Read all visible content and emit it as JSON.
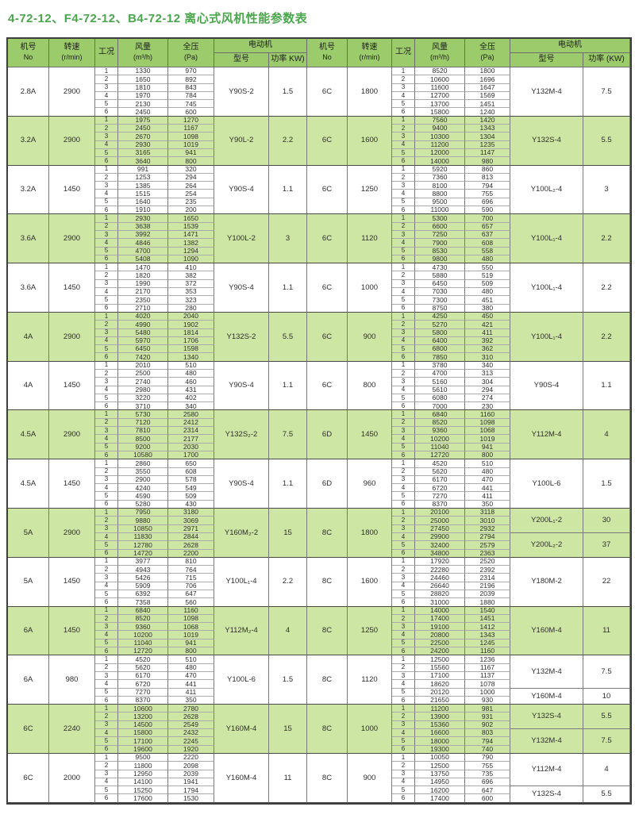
{
  "title": "4-72-12、F4-72-12、B4-72-12 离心式风机性能参数表",
  "colors": {
    "title_green": "#4aa64c",
    "header_bg": "#9bcb6a",
    "band_green": "#cee6a3",
    "border_dark": "#3e3e3e"
  },
  "header": {
    "left": {
      "no_cn": "机号",
      "no_en": "No",
      "rpm_cn": "转速",
      "rpm_en": "(r/min)",
      "cond": "工况",
      "flow_cn": "风量",
      "flow_en": "(m³/h)",
      "pressure_cn": "全压",
      "pressure_en": "(Pa)",
      "motor": "电动机",
      "model": "型号",
      "power": "功率 KW)"
    },
    "right": {
      "no_cn": "机号",
      "no_en": "No",
      "rpm_cn": "转速",
      "rpm_en": "(r/min)",
      "cond": "工况",
      "flow_cn": "风量",
      "flow_en": "(m³/h)",
      "pressure_cn": "全压",
      "pressure_en": "(Pa)",
      "motor": "电动机",
      "model": "型号",
      "power": "功率 (KW)"
    }
  },
  "chart_data": {
    "type": "table",
    "title": "4-72-12、F4-72-12、B4-72-12 离心式风机性能参数表",
    "columns": [
      "机号 No",
      "转速 (r/min)",
      "工况",
      "风量 (m³/h)",
      "全压 (Pa)",
      "电动机 型号",
      "电动机 功率 KW"
    ],
    "conditions": [
      1,
      2,
      3,
      4,
      5,
      6
    ],
    "groups_left": [
      {
        "no": "2.8A",
        "rpm": "2900",
        "shaded": false,
        "flow": [
          1330,
          1650,
          1810,
          1970,
          2130,
          2450
        ],
        "pressure": [
          970,
          892,
          843,
          784,
          745,
          600
        ],
        "motors": [
          {
            "model": "Y90S-2",
            "power": "1.5",
            "rows": 6
          }
        ]
      },
      {
        "no": "3.2A",
        "rpm": "2900",
        "shaded": true,
        "flow": [
          1975,
          2450,
          2670,
          2930,
          3165,
          3640
        ],
        "pressure": [
          1270,
          1167,
          1098,
          1019,
          941,
          800
        ],
        "motors": [
          {
            "model": "Y90L-2",
            "power": "2.2",
            "rows": 6
          }
        ]
      },
      {
        "no": "3.2A",
        "rpm": "1450",
        "shaded": false,
        "flow": [
          991,
          1253,
          1385,
          1515,
          1640,
          1910
        ],
        "pressure": [
          320,
          294,
          264,
          254,
          235,
          200
        ],
        "motors": [
          {
            "model": "Y90S-4",
            "power": "1.1",
            "rows": 6
          }
        ]
      },
      {
        "no": "3.6A",
        "rpm": "2900",
        "shaded": true,
        "flow": [
          2930,
          3638,
          3992,
          4846,
          4700,
          5408
        ],
        "pressure": [
          1650,
          1539,
          1471,
          1382,
          1294,
          1090
        ],
        "motors": [
          {
            "model": "Y100L-2",
            "power": "3",
            "rows": 6
          }
        ]
      },
      {
        "no": "3.6A",
        "rpm": "1450",
        "shaded": false,
        "flow": [
          1470,
          1820,
          1990,
          2170,
          2350,
          2710
        ],
        "pressure": [
          410,
          382,
          372,
          353,
          323,
          280
        ],
        "motors": [
          {
            "model": "Y90S-4",
            "power": "1.1",
            "rows": 6
          }
        ]
      },
      {
        "no": "4A",
        "rpm": "2900",
        "shaded": true,
        "flow": [
          4020,
          4990,
          5480,
          5970,
          6450,
          7420
        ],
        "pressure": [
          2040,
          1902,
          1814,
          1706,
          1598,
          1340
        ],
        "motors": [
          {
            "model": "Y132S-2",
            "power": "5.5",
            "rows": 6
          }
        ]
      },
      {
        "no": "4A",
        "rpm": "1450",
        "shaded": false,
        "flow": [
          2010,
          2500,
          2740,
          2980,
          3220,
          3710
        ],
        "pressure": [
          510,
          480,
          460,
          431,
          402,
          340
        ],
        "motors": [
          {
            "model": "Y90S-4",
            "power": "1.1",
            "rows": 6
          }
        ]
      },
      {
        "no": "4.5A",
        "rpm": "2900",
        "shaded": true,
        "flow": [
          5730,
          7120,
          7810,
          8500,
          9200,
          10580
        ],
        "pressure": [
          2580,
          2412,
          2314,
          2177,
          2030,
          1700
        ],
        "motors": [
          {
            "model": "Y132S₂-2",
            "power": "7.5",
            "rows": 6
          }
        ]
      },
      {
        "no": "4.5A",
        "rpm": "1450",
        "shaded": false,
        "flow": [
          2860,
          3550,
          2900,
          4240,
          4590,
          5280
        ],
        "pressure": [
          650,
          608,
          578,
          549,
          509,
          430
        ],
        "motors": [
          {
            "model": "Y90S-4",
            "power": "1.1",
            "rows": 6
          }
        ]
      },
      {
        "no": "5A",
        "rpm": "2900",
        "shaded": true,
        "flow": [
          7950,
          9880,
          10850,
          11830,
          12780,
          14720
        ],
        "pressure": [
          3180,
          3069,
          2971,
          2844,
          2628,
          2200
        ],
        "motors": [
          {
            "model": "Y160M₂-2",
            "power": "15",
            "rows": 6
          }
        ]
      },
      {
        "no": "5A",
        "rpm": "1450",
        "shaded": false,
        "flow": [
          3977,
          4943,
          5426,
          5909,
          6392,
          7358
        ],
        "pressure": [
          810,
          764,
          715,
          706,
          647,
          560
        ],
        "motors": [
          {
            "model": "Y100L₁-4",
            "power": "2.2",
            "rows": 6
          }
        ]
      },
      {
        "no": "6A",
        "rpm": "1450",
        "shaded": true,
        "flow": [
          6840,
          8520,
          9360,
          10200,
          11040,
          12720
        ],
        "pressure": [
          1160,
          1098,
          1068,
          1019,
          941,
          800
        ],
        "motors": [
          {
            "model": "Y112M₂-4",
            "power": "4",
            "rows": 6
          }
        ]
      },
      {
        "no": "6A",
        "rpm": "980",
        "shaded": false,
        "flow": [
          4520,
          5620,
          6170,
          6720,
          7270,
          8370
        ],
        "pressure": [
          510,
          480,
          470,
          441,
          411,
          350
        ],
        "motors": [
          {
            "model": "Y100L-6",
            "power": "1.5",
            "rows": 6
          }
        ]
      },
      {
        "no": "6C",
        "rpm": "2240",
        "shaded": true,
        "flow": [
          10600,
          13200,
          14500,
          15800,
          17100,
          19600
        ],
        "pressure": [
          2780,
          2628,
          2549,
          2432,
          2245,
          1920
        ],
        "motors": [
          {
            "model": "Y160M-4",
            "power": "15",
            "rows": 6
          }
        ]
      },
      {
        "no": "6C",
        "rpm": "2000",
        "shaded": false,
        "flow": [
          9500,
          11800,
          12950,
          14100,
          15250,
          17600
        ],
        "pressure": [
          2220,
          2098,
          2039,
          1941,
          1794,
          1530
        ],
        "motors": [
          {
            "model": "Y160M-4",
            "power": "11",
            "rows": 6
          }
        ]
      }
    ],
    "groups_right": [
      {
        "no": "6C",
        "rpm": "1800",
        "shaded": false,
        "flow": [
          8520,
          10600,
          11600,
          12700,
          13700,
          15800
        ],
        "pressure": [
          1800,
          1696,
          1647,
          1569,
          1451,
          1240
        ],
        "motors": [
          {
            "model": "Y132M-4",
            "power": "7.5",
            "rows": 6
          }
        ]
      },
      {
        "no": "6C",
        "rpm": "1600",
        "shaded": true,
        "flow": [
          7560,
          9400,
          10300,
          11200,
          12000,
          14000
        ],
        "pressure": [
          1420,
          1343,
          1304,
          1235,
          1147,
          980
        ],
        "motors": [
          {
            "model": "Y132S-4",
            "power": "5.5",
            "rows": 6
          }
        ]
      },
      {
        "no": "6C",
        "rpm": "1250",
        "shaded": false,
        "flow": [
          5920,
          7360,
          8100,
          8800,
          9500,
          11000
        ],
        "pressure": [
          860,
          813,
          794,
          755,
          696,
          590
        ],
        "motors": [
          {
            "model": "Y100L₂-4",
            "power": "3",
            "rows": 6
          }
        ]
      },
      {
        "no": "6C",
        "rpm": "1120",
        "shaded": true,
        "flow": [
          5300,
          6600,
          7250,
          7900,
          8530,
          9800
        ],
        "pressure": [
          700,
          657,
          637,
          608,
          558,
          480
        ],
        "motors": [
          {
            "model": "Y100L₁-4",
            "power": "2.2",
            "rows": 6
          }
        ]
      },
      {
        "no": "6C",
        "rpm": "1000",
        "shaded": false,
        "flow": [
          4730,
          5880,
          6450,
          7030,
          7300,
          8750
        ],
        "pressure": [
          550,
          519,
          509,
          480,
          451,
          380
        ],
        "motors": [
          {
            "model": "Y100L₁-4",
            "power": "2.2",
            "rows": 6
          }
        ]
      },
      {
        "no": "6C",
        "rpm": "900",
        "shaded": true,
        "flow": [
          4250,
          5270,
          5800,
          6400,
          6800,
          7850
        ],
        "pressure": [
          450,
          421,
          411,
          392,
          362,
          310
        ],
        "motors": [
          {
            "model": "Y100L₁-4",
            "power": "2.2",
            "rows": 6
          }
        ]
      },
      {
        "no": "6C",
        "rpm": "800",
        "shaded": false,
        "flow": [
          3780,
          4700,
          5160,
          5610,
          6080,
          7000
        ],
        "pressure": [
          340,
          313,
          304,
          294,
          274,
          230
        ],
        "motors": [
          {
            "model": "Y90S-4",
            "power": "1.1",
            "rows": 6
          }
        ]
      },
      {
        "no": "6D",
        "rpm": "1450",
        "shaded": true,
        "flow": [
          6840,
          8520,
          9360,
          10200,
          11040,
          12720
        ],
        "pressure": [
          1160,
          1098,
          1068,
          1019,
          941,
          800
        ],
        "motors": [
          {
            "model": "Y112M-4",
            "power": "4",
            "rows": 6
          }
        ]
      },
      {
        "no": "6D",
        "rpm": "960",
        "shaded": false,
        "flow": [
          4520,
          5620,
          6170,
          6720,
          7270,
          8370
        ],
        "pressure": [
          510,
          480,
          470,
          441,
          411,
          350
        ],
        "motors": [
          {
            "model": "Y100L-6",
            "power": "1.5",
            "rows": 6
          }
        ]
      },
      {
        "no": "8C",
        "rpm": "1800",
        "shaded": true,
        "flow": [
          20100,
          25000,
          27450,
          29900,
          32400,
          34800
        ],
        "pressure": [
          3118,
          3010,
          2932,
          2794,
          2579,
          2363
        ],
        "motors": [
          {
            "model": "Y200L₁-2",
            "power": "30",
            "rows": 3
          },
          {
            "model": "Y200L₂-2",
            "power": "37",
            "rows": 3
          }
        ]
      },
      {
        "no": "8C",
        "rpm": "1600",
        "shaded": false,
        "flow": [
          17920,
          22280,
          24460,
          26640,
          28820,
          31000
        ],
        "pressure": [
          2520,
          2392,
          2314,
          2196,
          2039,
          1880
        ],
        "motors": [
          {
            "model": "Y180M-2",
            "power": "22",
            "rows": 6
          }
        ]
      },
      {
        "no": "8C",
        "rpm": "1250",
        "shaded": true,
        "flow": [
          14000,
          17400,
          19100,
          20800,
          22500,
          24200
        ],
        "pressure": [
          1540,
          1451,
          1412,
          1343,
          1245,
          1160
        ],
        "motors": [
          {
            "model": "Y160M-4",
            "power": "11",
            "rows": 6
          }
        ]
      },
      {
        "no": "8C",
        "rpm": "1120",
        "shaded": false,
        "flow": [
          12500,
          15560,
          17100,
          18620,
          20120,
          21650
        ],
        "pressure": [
          1236,
          1167,
          1137,
          1078,
          1000,
          930
        ],
        "motors": [
          {
            "model": "Y132M-4",
            "power": "7.5",
            "rows": 4
          },
          {
            "model": "Y160M-4",
            "power": "10",
            "rows": 2
          }
        ]
      },
      {
        "no": "8C",
        "rpm": "1000",
        "shaded": true,
        "flow": [
          11200,
          13900,
          15360,
          16600,
          18000,
          19300
        ],
        "pressure": [
          981,
          931,
          902,
          803,
          794,
          740
        ],
        "motors": [
          {
            "model": "Y132S-4",
            "power": "5.5",
            "rows": 3
          },
          {
            "model": "Y132M-4",
            "power": "7.5",
            "rows": 3
          }
        ]
      },
      {
        "no": "8C",
        "rpm": "900",
        "shaded": false,
        "flow": [
          10050,
          12500,
          13750,
          14950,
          16200,
          17400
        ],
        "pressure": [
          790,
          755,
          735,
          696,
          647,
          600
        ],
        "motors": [
          {
            "model": "Y112M-4",
            "power": "4",
            "rows": 4
          },
          {
            "model": "Y132S-4",
            "power": "5.5",
            "rows": 2
          }
        ]
      }
    ]
  }
}
